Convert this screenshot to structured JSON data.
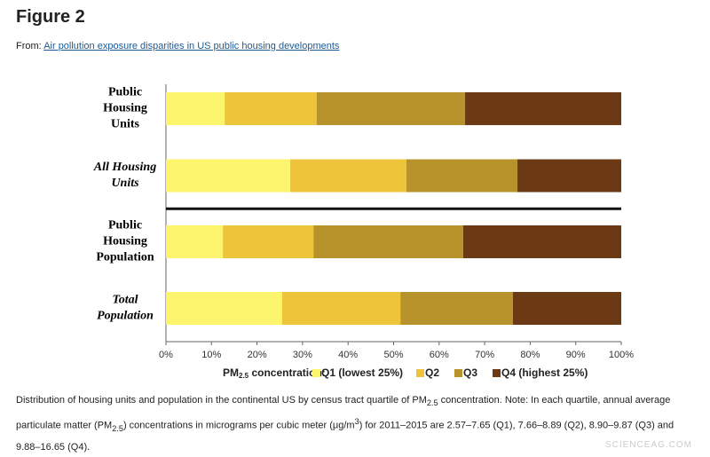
{
  "header": {
    "title": "Figure 2",
    "from_label": "From:",
    "link": "Air pollution exposure disparities in US public housing developments"
  },
  "chart_data": {
    "type": "stacked-barh",
    "categories": [
      [
        "Public",
        "Housing",
        "Units"
      ],
      [
        "All Housing",
        "Units"
      ],
      [
        "Public",
        "Housing",
        "Population"
      ],
      [
        "Total",
        "Population"
      ]
    ],
    "italic": [
      false,
      true,
      false,
      true
    ],
    "separator_after": 1,
    "legend_title": [
      {
        "t": "PM"
      },
      {
        "sub": "2.5"
      },
      {
        "t": " concentration:"
      }
    ],
    "series": [
      {
        "name": "Q1 (lowest 25%)",
        "color": "#fbf46c",
        "values": [
          12.9,
          27.3,
          12.5,
          25.5
        ]
      },
      {
        "name": "Q2",
        "color": "#eec43a",
        "values": [
          20.2,
          25.5,
          19.9,
          26.0
        ]
      },
      {
        "name": "Q3",
        "color": "#b8922a",
        "values": [
          32.6,
          24.4,
          32.9,
          24.7
        ]
      },
      {
        "name": "Q4 (highest 25%)",
        "color": "#6b3a14",
        "values": [
          34.3,
          22.8,
          34.7,
          23.8
        ]
      }
    ],
    "xlim": [
      0,
      100
    ],
    "xticks": [
      {
        "value": 0,
        "label": "0%"
      },
      {
        "value": 10,
        "label": "10%"
      },
      {
        "value": 20,
        "label": "20%"
      },
      {
        "value": 30,
        "label": "30%"
      },
      {
        "value": 40,
        "label": "40%"
      },
      {
        "value": 50,
        "label": "50%"
      },
      {
        "value": 60,
        "label": "60%"
      },
      {
        "value": 70,
        "label": "70%"
      },
      {
        "value": 80,
        "label": "80%"
      },
      {
        "value": 90,
        "label": "90%"
      },
      {
        "value": 100,
        "label": "100%"
      }
    ]
  },
  "caption": [
    {
      "t": "Distribution of housing units and population in the continental US by census tract quartile of PM"
    },
    {
      "sub": "2.5"
    },
    {
      "t": " concentration. Note: In each quartile, annual average particulate matter (PM"
    },
    {
      "sub": "2.5"
    },
    {
      "t": ") concentrations in micrograms per cubic meter (μg/m"
    },
    {
      "sup": "3"
    },
    {
      "t": ") for 2011–2015 are 2.57–7.65 (Q1), 7.66–8.89 (Q2), 8.90–9.87 (Q3) and 9.88–16.65 (Q4)."
    }
  ],
  "watermark": "SCIENCEAG.COM"
}
